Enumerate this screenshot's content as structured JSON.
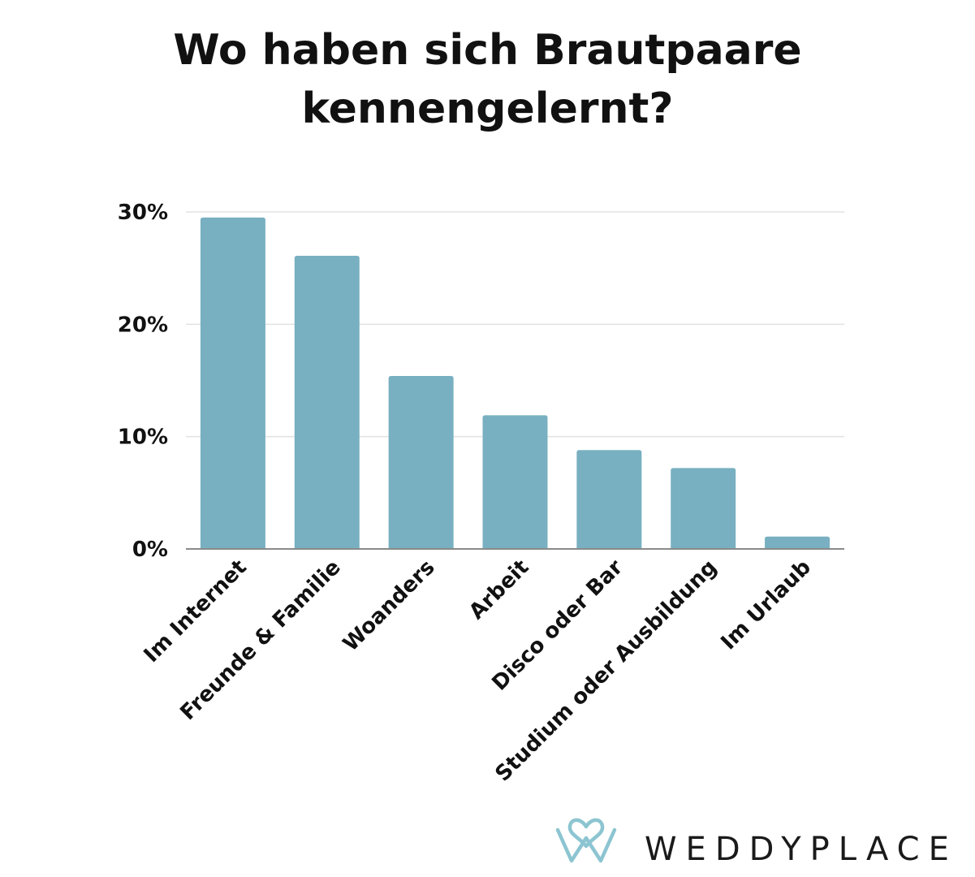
{
  "title": {
    "line1": "Wo haben sich Brautpaare",
    "line2": "kennengelernt?"
  },
  "chart_data": {
    "type": "bar",
    "title": "Wo haben sich Brautpaare kennengelernt?",
    "xlabel": "",
    "ylabel": "",
    "categories": [
      "Im Internet",
      "Freunde & Familie",
      "Woanders",
      "Arbeit",
      "Disco oder Bar",
      "Studium oder Ausbildung",
      "Im Urlaub"
    ],
    "values": [
      29.5,
      26.1,
      15.4,
      11.9,
      8.8,
      7.2,
      1.1
    ],
    "unit": "%",
    "ylim": [
      0,
      30
    ],
    "yticks": [
      0,
      10,
      20,
      30
    ],
    "ytick_labels": [
      "0%",
      "10%",
      "20%",
      "30%"
    ],
    "grid": true,
    "legend": "none",
    "bar_color": "#78b0c1"
  },
  "brand": {
    "name": "WEDDYPLACE",
    "logo_icon": "heart-w-icon",
    "logo_color": "#8cc5d1"
  }
}
